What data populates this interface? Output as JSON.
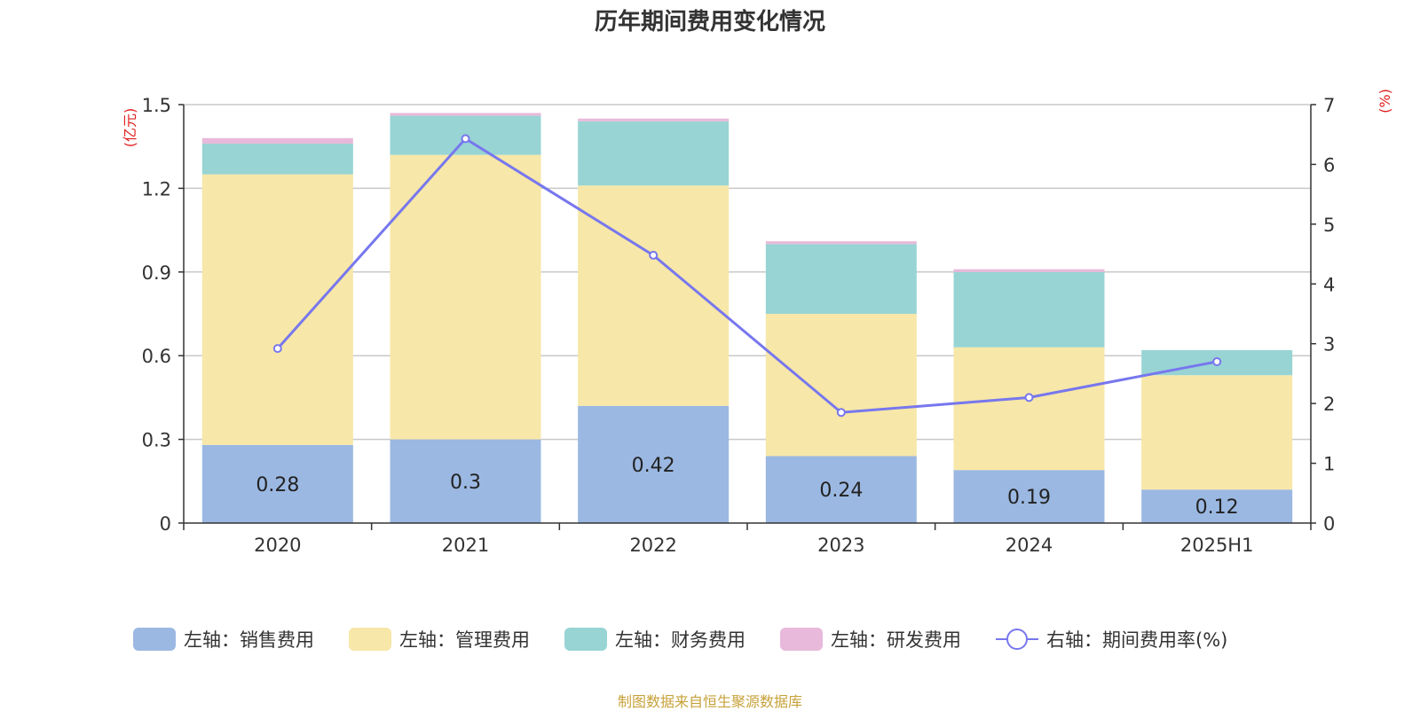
{
  "chart_data": {
    "type": "bar",
    "title": "历年期间费用变化情况",
    "left_axis_label": "(亿元)",
    "right_axis_label": "(%)",
    "categories": [
      "2020",
      "2021",
      "2022",
      "2023",
      "2024",
      "2025H1"
    ],
    "left_ylim": [
      0,
      1.5
    ],
    "left_ticks": [
      "0",
      "0.3",
      "0.6",
      "0.9",
      "1.2",
      "1.5"
    ],
    "right_ylim": [
      0,
      7
    ],
    "right_ticks": [
      "0",
      "1",
      "2",
      "3",
      "4",
      "5",
      "6",
      "7"
    ],
    "grid": true,
    "legend_position": "bottom",
    "series": [
      {
        "name": "左轴：销售费用",
        "type": "bar",
        "axis": "left",
        "color": "#9bb8e2",
        "values": [
          0.28,
          0.3,
          0.42,
          0.24,
          0.19,
          0.12
        ],
        "data_labels": [
          "0.28",
          "0.3",
          "0.42",
          "0.24",
          "0.19",
          "0.12"
        ]
      },
      {
        "name": "左轴：管理费用",
        "type": "bar",
        "axis": "left",
        "color": "#f7e7a8",
        "values": [
          0.97,
          1.02,
          0.79,
          0.51,
          0.44,
          0.41
        ]
      },
      {
        "name": "左轴：财务费用",
        "type": "bar",
        "axis": "left",
        "color": "#98d4d4",
        "values": [
          0.11,
          0.14,
          0.23,
          0.25,
          0.27,
          0.09
        ]
      },
      {
        "name": "左轴：研发费用",
        "type": "bar",
        "axis": "left",
        "color": "#e8b9da",
        "values": [
          0.02,
          0.01,
          0.01,
          0.01,
          0.01,
          0.0
        ]
      },
      {
        "name": "右轴：期间费用率(%)",
        "type": "line",
        "axis": "right",
        "color": "#7777ee",
        "values": [
          2.92,
          6.43,
          4.48,
          1.85,
          2.1,
          2.7
        ]
      }
    ]
  },
  "source": "制图数据来自恒生聚源数据库"
}
